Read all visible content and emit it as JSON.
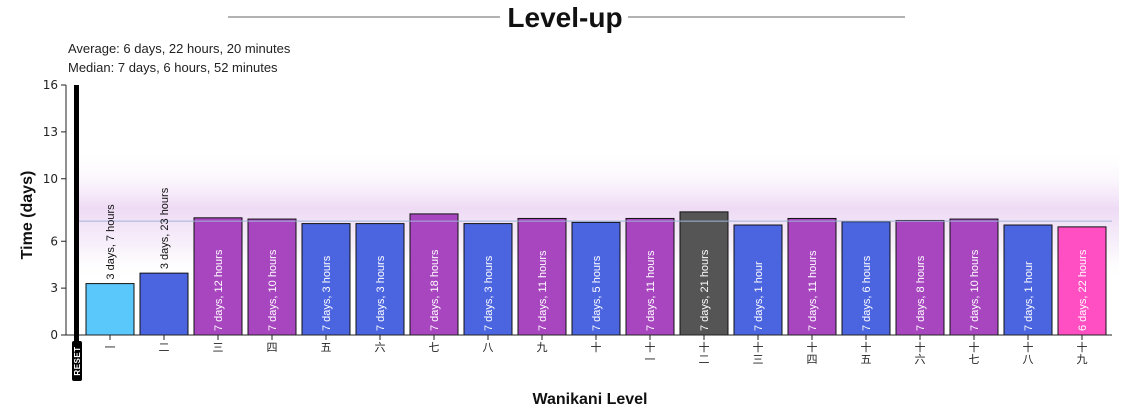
{
  "chart_data": {
    "type": "bar",
    "title": "Level-up",
    "stats": {
      "average": "Average: 6 days, 22 hours, 20 minutes",
      "median": "Median: 7 days, 6 hours, 52 minutes"
    },
    "xlabel": "Wanikani Level",
    "ylabel": "Time (days)",
    "ylim": [
      0,
      16
    ],
    "yticks": [
      0,
      3,
      6,
      10,
      13,
      16
    ],
    "grid": false,
    "median_line_value": 7.29,
    "categories": [
      "一",
      "二",
      "三",
      "四",
      "五",
      "六",
      "七",
      "八",
      "九",
      "十",
      "十一",
      "十二",
      "十三",
      "十四",
      "十五",
      "十六",
      "十七",
      "十八",
      "十九"
    ],
    "values": [
      3.29,
      3.96,
      7.5,
      7.42,
      7.13,
      7.13,
      7.75,
      7.13,
      7.46,
      7.21,
      7.46,
      7.88,
      7.04,
      7.46,
      7.25,
      7.33,
      7.42,
      7.04,
      6.92
    ],
    "labels": [
      "3 days, 7 hours",
      "3 days, 23 hours",
      "7 days, 12 hours",
      "7 days, 10 hours",
      "7 days, 3 hours",
      "7 days, 3 hours",
      "7 days, 18 hours",
      "7 days, 3 hours",
      "7 days, 11 hours",
      "7 days, 5 hours",
      "7 days, 11 hours",
      "7 days, 21 hours",
      "7 days, 1 hour",
      "7 days, 11 hours",
      "7 days, 6 hours",
      "7 days, 8 hours",
      "7 days, 10 hours",
      "7 days, 1 hour",
      "6 days, 22 hours"
    ],
    "colors": [
      "#5bc8fb",
      "#4b64e0",
      "#a846c0",
      "#a846c0",
      "#4b64e0",
      "#4b64e0",
      "#a846c0",
      "#4b64e0",
      "#a846c0",
      "#4b64e0",
      "#a846c0",
      "#555555",
      "#4b64e0",
      "#a846c0",
      "#4b64e0",
      "#a846c0",
      "#a846c0",
      "#4b64e0",
      "#ff4fc2"
    ],
    "reset_label": "RESET"
  }
}
